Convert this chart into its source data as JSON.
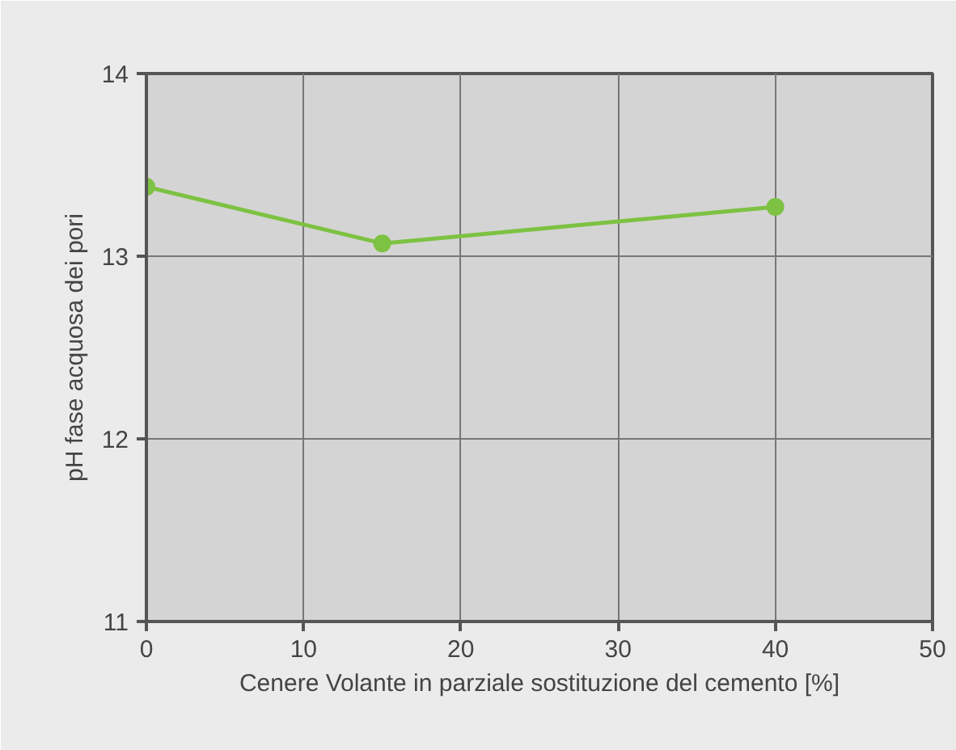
{
  "chart_data": {
    "type": "line",
    "xlabel": "Cenere Volante in parziale sostituzione del cemento [%]",
    "ylabel": "pH fase acquosa dei pori",
    "x": [
      0,
      15,
      40
    ],
    "series": [
      {
        "color": "#7dc242",
        "values": [
          13.38,
          13.07,
          13.27
        ]
      }
    ],
    "xlim": [
      0,
      50
    ],
    "xticks": [
      0,
      10,
      20,
      30,
      40,
      50
    ],
    "ylim": [
      11,
      14
    ],
    "yticks": [
      11,
      12,
      13,
      14
    ],
    "grid": true,
    "marker": "circle",
    "line_style": "solid"
  }
}
